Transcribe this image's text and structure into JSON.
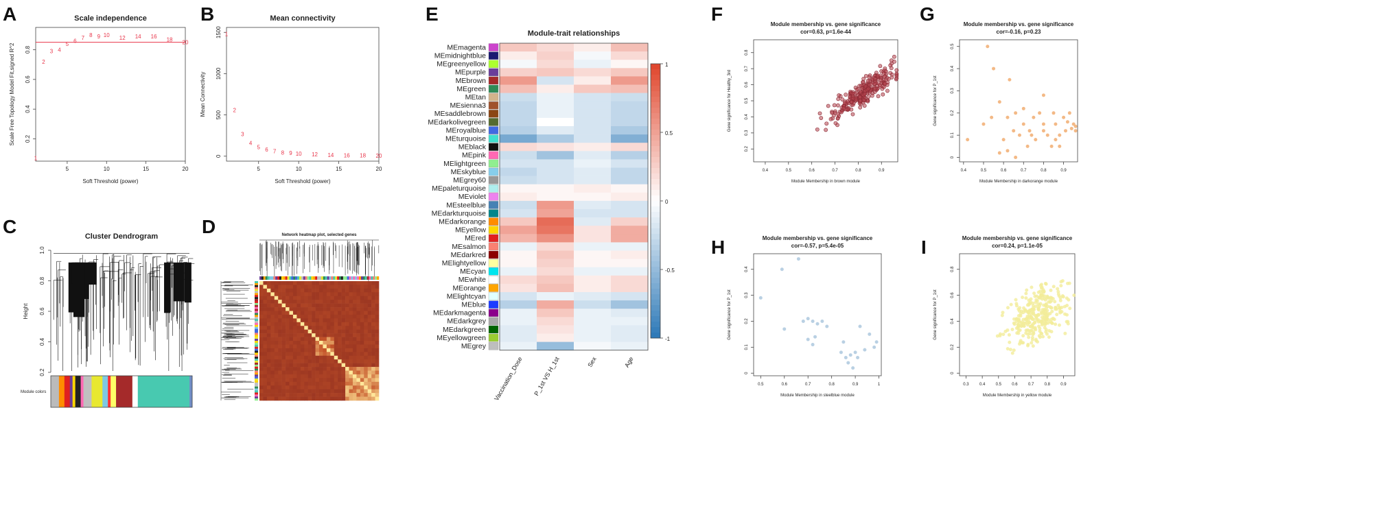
{
  "panels": {
    "A": "A",
    "B": "B",
    "C": "C",
    "D": "D",
    "E": "E",
    "F": "F",
    "G": "G",
    "H": "H",
    "I": "I"
  },
  "chart_data": [
    {
      "id": "A",
      "type": "scatter",
      "title": "Scale independence",
      "xlabel": "Soft Threshold (power)",
      "ylabel": "Scale Free Topology Model Fit,signed R^2",
      "xlim": [
        1,
        20
      ],
      "ylim": [
        0.05,
        0.95
      ],
      "xticks": [
        5,
        10,
        15,
        20
      ],
      "yticks": [
        0.2,
        0.4,
        0.6,
        0.8
      ],
      "hline": 0.85,
      "color": "#e8354a",
      "x": [
        1,
        2,
        3,
        4,
        5,
        6,
        7,
        8,
        9,
        10,
        12,
        14,
        16,
        18,
        20
      ],
      "y": [
        0.07,
        0.72,
        0.79,
        0.8,
        0.84,
        0.86,
        0.88,
        0.9,
        0.89,
        0.9,
        0.88,
        0.89,
        0.89,
        0.87,
        0.85
      ],
      "labels": [
        "1",
        "2",
        "3",
        "4",
        "5",
        "6",
        "7",
        "8",
        "9",
        "10",
        "12",
        "14",
        "16",
        "18",
        "20"
      ]
    },
    {
      "id": "B",
      "type": "scatter",
      "title": "Mean connectivity",
      "xlabel": "Soft Threshold (power)",
      "ylabel": "Mean Connectivity",
      "xlim": [
        1,
        20
      ],
      "ylim": [
        -60,
        1560
      ],
      "xticks": [
        5,
        10,
        15,
        20
      ],
      "yticks": [
        0,
        500,
        1000,
        1500
      ],
      "ytick_labels": [
        "0",
        "500",
        "1000",
        "1500"
      ],
      "color": "#e8354a",
      "x": [
        1,
        2,
        3,
        4,
        5,
        6,
        7,
        8,
        9,
        10,
        12,
        14,
        16,
        18,
        20
      ],
      "y": [
        1480,
        560,
        270,
        160,
        110,
        80,
        60,
        45,
        38,
        30,
        22,
        16,
        12,
        10,
        8
      ],
      "labels": [
        "1",
        "2",
        "3",
        "4",
        "5",
        "6",
        "7",
        "8",
        "9",
        "10",
        "12",
        "14",
        "16",
        "18",
        "20"
      ]
    },
    {
      "id": "C",
      "type": "dendrogram",
      "title": "Cluster Dendrogram",
      "ylabel": "Height",
      "ylim": [
        0.2,
        1.0
      ],
      "yticks": [
        0.2,
        0.4,
        0.6,
        0.8,
        1.0
      ],
      "ytick_labels": [
        "0.2",
        "0.4",
        "0.6",
        "0.8",
        "1.0"
      ],
      "color_bar_label": "Module colors",
      "color_segments": [
        {
          "color": "#bbbbbb",
          "width": 3
        },
        {
          "color": "#ff8c00",
          "width": 2
        },
        {
          "color": "#e02020",
          "width": 2
        },
        {
          "color": "#6a3d9a",
          "width": 1
        },
        {
          "color": "#ffd700",
          "width": 1
        },
        {
          "color": "#222222",
          "width": 2
        },
        {
          "color": "#ff69b4",
          "width": 1
        },
        {
          "color": "#c0c0c0",
          "width": 3
        },
        {
          "color": "#e8e830",
          "width": 4
        },
        {
          "color": "#7ec8e3",
          "width": 2
        },
        {
          "color": "#ff3030",
          "width": 1
        },
        {
          "color": "#ffff66",
          "width": 2
        },
        {
          "color": "#a52a2a",
          "width": 6
        },
        {
          "color": "#ffffff",
          "width": 2
        },
        {
          "color": "#48c9b0",
          "width": 19
        },
        {
          "color": "#6f8ec5",
          "width": 1
        }
      ]
    },
    {
      "id": "D",
      "type": "heatmap",
      "title": "Network heatmap plot, selected genes"
    },
    {
      "id": "E",
      "type": "heatmap",
      "title": "Module-trait relationships",
      "columns": [
        "Vaccination_Dose",
        "P_1st VS H_1st",
        "Sex",
        "Age"
      ],
      "rows": [
        "MEmagenta",
        "MEmidnightblue",
        "MEgreenyellow",
        "MEpurple",
        "MEbrown",
        "MEgreen",
        "MEtan",
        "MEsienna3",
        "MEsaddlebrown",
        "MEdarkolivegreen",
        "MEroyalblue",
        "MEturquoise",
        "MEblack",
        "MEpink",
        "MElightgreen",
        "MEskyblue",
        "MEgrey60",
        "MEpaleturquoise",
        "MEviolet",
        "MEsteelblue",
        "MEdarkturquoise",
        "MEdarkorange",
        "MEyellow",
        "MEred",
        "MEsalmon",
        "MEdarkred",
        "MElightyellow",
        "MEcyan",
        "MEwhite",
        "MEorange",
        "MElightcyan",
        "MEblue",
        "MEdarkmagenta",
        "MEdarkgrey",
        "MEdarkgreen",
        "MEyellowgreen",
        "MEgrey"
      ],
      "row_colors": [
        "#cc44cc",
        "#191970",
        "#adff2f",
        "#6a3d9a",
        "#a52a2a",
        "#2e8b57",
        "#d2b48c",
        "#a0522d",
        "#8b4513",
        "#556b2f",
        "#4169e1",
        "#40e0d0",
        "#111111",
        "#ff69b4",
        "#90ee90",
        "#87ceeb",
        "#999999",
        "#afeeee",
        "#ee82ee",
        "#4682b4",
        "#00868b",
        "#ff8c00",
        "#ffd700",
        "#e02020",
        "#fa8072",
        "#8b0000",
        "#ffffa0",
        "#00e5ee",
        "#ffffff",
        "#ffa500",
        "#e0ffff",
        "#1e3cff",
        "#8b008b",
        "#a9a9a9",
        "#006400",
        "#9acd32",
        "#bebebe"
      ],
      "values": [
        [
          0.3,
          0.2,
          0.1,
          0.35
        ],
        [
          0.1,
          0.25,
          -0.05,
          0.2
        ],
        [
          -0.05,
          0.2,
          -0.1,
          0.05
        ],
        [
          0.25,
          0.3,
          0.2,
          0.3
        ],
        [
          0.55,
          -0.2,
          0.1,
          0.55
        ],
        [
          0.35,
          0.1,
          0.3,
          0.35
        ],
        [
          -0.25,
          -0.1,
          -0.2,
          -0.25
        ],
        [
          -0.3,
          -0.1,
          -0.2,
          -0.3
        ],
        [
          -0.3,
          -0.1,
          -0.2,
          -0.3
        ],
        [
          -0.3,
          0.0,
          -0.2,
          -0.3
        ],
        [
          -0.35,
          -0.15,
          -0.2,
          -0.4
        ],
        [
          -0.65,
          -0.4,
          -0.2,
          -0.6
        ],
        [
          0.2,
          0.15,
          0.1,
          0.2
        ],
        [
          -0.25,
          -0.45,
          -0.15,
          -0.35
        ],
        [
          -0.2,
          -0.2,
          -0.1,
          -0.2
        ],
        [
          -0.3,
          -0.2,
          -0.15,
          -0.3
        ],
        [
          -0.25,
          -0.2,
          -0.15,
          -0.3
        ],
        [
          0.05,
          0.05,
          0.1,
          0.05
        ],
        [
          0.1,
          0.05,
          0.05,
          0.1
        ],
        [
          -0.25,
          0.55,
          -0.15,
          -0.2
        ],
        [
          -0.2,
          0.5,
          -0.2,
          -0.2
        ],
        [
          0.3,
          0.8,
          -0.15,
          0.25
        ],
        [
          0.5,
          0.75,
          0.15,
          0.45
        ],
        [
          0.4,
          0.6,
          0.15,
          0.45
        ],
        [
          -0.1,
          0.2,
          -0.1,
          -0.1
        ],
        [
          0.05,
          0.3,
          0.05,
          0.1
        ],
        [
          0.05,
          0.25,
          0.05,
          0.05
        ],
        [
          -0.1,
          0.2,
          -0.1,
          -0.1
        ],
        [
          0.2,
          0.3,
          0.1,
          0.2
        ],
        [
          0.15,
          0.35,
          0.1,
          0.2
        ],
        [
          -0.2,
          -0.1,
          -0.15,
          -0.2
        ],
        [
          -0.35,
          0.45,
          -0.25,
          -0.45
        ],
        [
          -0.1,
          0.3,
          -0.1,
          -0.15
        ],
        [
          -0.1,
          0.2,
          -0.1,
          -0.1
        ],
        [
          -0.15,
          0.15,
          -0.1,
          -0.15
        ],
        [
          -0.15,
          0.1,
          -0.1,
          -0.15
        ],
        [
          -0.1,
          -0.5,
          -0.05,
          -0.1
        ]
      ],
      "colorbar": {
        "min": -1,
        "max": 1,
        "ticks": [
          1,
          0.5,
          0,
          -0.5,
          -1
        ],
        "tick_labels": [
          "1",
          "0.5",
          "0",
          "-0.5",
          "-1"
        ]
      }
    },
    {
      "id": "F",
      "type": "scatter",
      "title": "Module membership vs. gene significance",
      "subtitle": "cor=0.63, p=1.6e-44",
      "xlabel": "Module Membership in brown module",
      "ylabel": "Gene significance for Healthy_3rd",
      "xlim": [
        0.35,
        0.97
      ],
      "ylim": [
        0.12,
        0.88
      ],
      "xticks": [
        0.4,
        0.5,
        0.6,
        0.7,
        0.8,
        0.9
      ],
      "yticks": [
        0.2,
        0.3,
        0.4,
        0.5,
        0.6,
        0.7,
        0.8
      ],
      "color": "#b5444f",
      "n": 260,
      "seed": 11,
      "slope": 1.0,
      "x_center": 0.82,
      "x_spread": 0.11,
      "y_noise": 0.1,
      "y_base": 0.55
    },
    {
      "id": "G",
      "type": "scatter",
      "title": "Module membership vs. gene significance",
      "subtitle": "cor=-0.16, p=0.23",
      "xlabel": "Module Membership in darkorange module",
      "ylabel": "Gene significance for P_1st",
      "xlim": [
        0.38,
        0.97
      ],
      "ylim": [
        -0.02,
        0.53
      ],
      "xticks": [
        0.4,
        0.5,
        0.6,
        0.7,
        0.8,
        0.9
      ],
      "yticks": [
        0.0,
        0.1,
        0.2,
        0.3,
        0.4,
        0.5
      ],
      "color": "#f0a868",
      "x": [
        0.52,
        0.55,
        0.58,
        0.6,
        0.62,
        0.63,
        0.65,
        0.66,
        0.68,
        0.7,
        0.72,
        0.73,
        0.75,
        0.76,
        0.78,
        0.8,
        0.8,
        0.82,
        0.84,
        0.85,
        0.86,
        0.88,
        0.9,
        0.91,
        0.92,
        0.94,
        0.95,
        0.96,
        0.96,
        0.5,
        0.62,
        0.7,
        0.58,
        0.66,
        0.74,
        0.88,
        0.93,
        0.8,
        0.86,
        0.54,
        0.42
      ],
      "y": [
        0.5,
        0.4,
        0.25,
        0.08,
        0.18,
        0.35,
        0.12,
        0.2,
        0.1,
        0.15,
        0.05,
        0.12,
        0.18,
        0.08,
        0.2,
        0.28,
        0.15,
        0.1,
        0.05,
        0.2,
        0.15,
        0.1,
        0.18,
        0.12,
        0.16,
        0.13,
        0.15,
        0.14,
        0.12,
        0.15,
        0.03,
        0.22,
        0.02,
        0.0,
        0.1,
        0.05,
        0.2,
        0.12,
        0.08,
        0.18,
        0.08
      ]
    },
    {
      "id": "H",
      "type": "scatter",
      "title": "Module membership vs. gene significance",
      "subtitle": "cor=-0.57, p=5.4e-05",
      "xlabel": "Module Membership in steelblue module",
      "ylabel": "Gene significance for P_1st",
      "xlim": [
        0.47,
        1.01
      ],
      "ylim": [
        -0.01,
        0.46
      ],
      "xticks": [
        0.5,
        0.6,
        0.7,
        0.8,
        0.9,
        1.0
      ],
      "yticks": [
        0.0,
        0.1,
        0.2,
        0.3,
        0.4
      ],
      "color": "#a8c4dc",
      "x": [
        0.5,
        0.59,
        0.66,
        0.6,
        0.68,
        0.7,
        0.72,
        0.74,
        0.76,
        0.78,
        0.7,
        0.72,
        0.73,
        0.84,
        0.86,
        0.87,
        0.88,
        0.9,
        0.89,
        0.92,
        0.94,
        0.96,
        0.98,
        0.99,
        0.85,
        0.91
      ],
      "y": [
        0.29,
        0.4,
        0.44,
        0.17,
        0.2,
        0.21,
        0.2,
        0.19,
        0.2,
        0.18,
        0.13,
        0.11,
        0.14,
        0.08,
        0.06,
        0.04,
        0.07,
        0.08,
        0.02,
        0.18,
        0.09,
        0.15,
        0.1,
        0.12,
        0.12,
        0.06
      ]
    },
    {
      "id": "I",
      "type": "scatter",
      "title": "Module membership vs. gene significance",
      "subtitle": "cor=0.24, p=1.1e-05",
      "xlabel": "Module Membership in yellow module",
      "ylabel": "Gene significance for P_1st",
      "xlim": [
        0.26,
        0.97
      ],
      "ylim": [
        -0.02,
        0.92
      ],
      "xticks": [
        0.3,
        0.4,
        0.5,
        0.6,
        0.7,
        0.8,
        0.9
      ],
      "yticks": [
        0.0,
        0.2,
        0.4,
        0.6,
        0.8
      ],
      "color": "#f3ec9a",
      "n": 320,
      "seed": 29,
      "slope": 0.55,
      "x_center": 0.74,
      "x_spread": 0.14,
      "y_noise": 0.24,
      "y_base": 0.45
    }
  ]
}
